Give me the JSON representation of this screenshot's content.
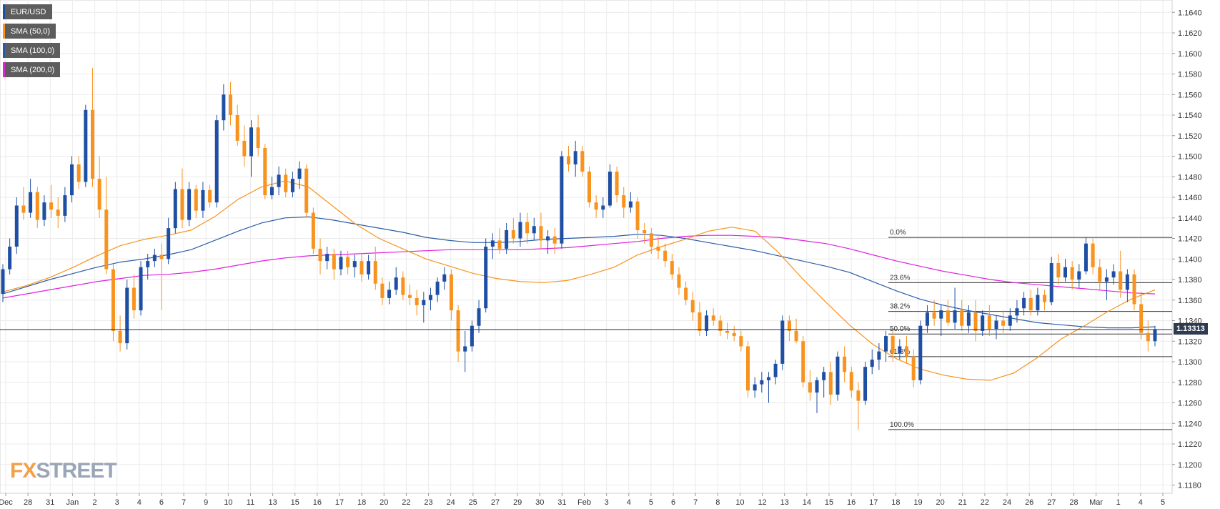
{
  "colors": {
    "up": "#1f4fa3",
    "down": "#f7931e",
    "sma50": "#f7931e",
    "sma100": "#2a5ba8",
    "sma200": "#e020e0",
    "grid": "#ebebeb",
    "axis_text": "#333333",
    "fib_line": "#333333",
    "price_line": "#1b2a4a",
    "legend_bg": "#5d5d5d"
  },
  "legend": [
    {
      "label": "EUR/USD",
      "color": "#1f4fa3"
    },
    {
      "label": "SMA (50,0)",
      "color": "#f7931e"
    },
    {
      "label": "SMA (100,0)",
      "color": "#2a5ba8"
    },
    {
      "label": "SMA (200,0)",
      "color": "#e020e0"
    }
  ],
  "last_price_label": "1.13313",
  "logo": {
    "part1": "FX",
    "part2": "STREET"
  },
  "chart_data": {
    "type": "candlestick",
    "symbol": "EUR/USD",
    "ylim": [
      1.1172,
      1.1652
    ],
    "yticks": [
      "1.1180",
      "1.1200",
      "1.1220",
      "1.1240",
      "1.1260",
      "1.1280",
      "1.1300",
      "1.1320",
      "1.1340",
      "1.1360",
      "1.1380",
      "1.1400",
      "1.1420",
      "1.1440",
      "1.1460",
      "1.1480",
      "1.1500",
      "1.1520",
      "1.1540",
      "1.1560",
      "1.1580",
      "1.1600",
      "1.1620",
      "1.1640"
    ],
    "xticks": [
      "Dec",
      "28",
      "31",
      "Jan",
      "2",
      "3",
      "4",
      "6",
      "7",
      "9",
      "10",
      "11",
      "13",
      "15",
      "16",
      "17",
      "18",
      "20",
      "22",
      "23",
      "24",
      "25",
      "27",
      "29",
      "30",
      "31",
      "Feb",
      "3",
      "4",
      "5",
      "6",
      "7",
      "8",
      "10",
      "12",
      "13",
      "14",
      "15",
      "16",
      "17",
      "18",
      "19",
      "20",
      "21",
      "22",
      "24",
      "26",
      "27",
      "28",
      "Mar",
      "1",
      "4",
      "5"
    ],
    "last_price": 1.13313,
    "fibonacci": [
      {
        "label": "0.0%",
        "value": 1.1421
      },
      {
        "label": "23.6%",
        "value": 1.1377
      },
      {
        "label": "38.2%",
        "value": 1.1349
      },
      {
        "label": "50.0%",
        "value": 1.1327
      },
      {
        "label": "61.8%",
        "value": 1.1305
      },
      {
        "label": "100.0%",
        "value": 1.1234
      }
    ],
    "candles_ohlc": [
      [
        1.1366,
        1.1395,
        1.1358,
        1.139
      ],
      [
        1.139,
        1.142,
        1.1385,
        1.1412
      ],
      [
        1.1412,
        1.146,
        1.1405,
        1.1452
      ],
      [
        1.1452,
        1.147,
        1.1438,
        1.1445
      ],
      [
        1.1445,
        1.1478,
        1.144,
        1.1465
      ],
      [
        1.1465,
        1.147,
        1.143,
        1.1438
      ],
      [
        1.1438,
        1.1462,
        1.1432,
        1.1455
      ],
      [
        1.1455,
        1.1472,
        1.144,
        1.1448
      ],
      [
        1.1448,
        1.146,
        1.143,
        1.1442
      ],
      [
        1.1442,
        1.147,
        1.1436,
        1.1462
      ],
      [
        1.1462,
        1.15,
        1.1455,
        1.1492
      ],
      [
        1.1492,
        1.15,
        1.1468,
        1.1475
      ],
      [
        1.1475,
        1.155,
        1.147,
        1.1545
      ],
      [
        1.1545,
        1.1586,
        1.147,
        1.1478
      ],
      [
        1.1478,
        1.15,
        1.144,
        1.1448
      ],
      [
        1.1448,
        1.148,
        1.1385,
        1.139
      ],
      [
        1.139,
        1.1395,
        1.132,
        1.133
      ],
      [
        1.133,
        1.1345,
        1.131,
        1.1318
      ],
      [
        1.1318,
        1.138,
        1.1312,
        1.1372
      ],
      [
        1.1372,
        1.1385,
        1.1342,
        1.135
      ],
      [
        1.135,
        1.1398,
        1.1345,
        1.1392
      ],
      [
        1.1392,
        1.1405,
        1.138,
        1.1398
      ],
      [
        1.1398,
        1.141,
        1.1392,
        1.1404
      ],
      [
        1.1404,
        1.1415,
        1.135,
        1.14
      ],
      [
        1.14,
        1.144,
        1.1395,
        1.143
      ],
      [
        1.143,
        1.1475,
        1.1425,
        1.1468
      ],
      [
        1.1468,
        1.1488,
        1.143,
        1.1438
      ],
      [
        1.1438,
        1.1475,
        1.1432,
        1.1468
      ],
      [
        1.1468,
        1.1472,
        1.144,
        1.1447
      ],
      [
        1.1447,
        1.1475,
        1.144,
        1.1467
      ],
      [
        1.1467,
        1.1472,
        1.145,
        1.1455
      ],
      [
        1.1455,
        1.154,
        1.145,
        1.1535
      ],
      [
        1.1535,
        1.157,
        1.1525,
        1.156
      ],
      [
        1.156,
        1.1572,
        1.153,
        1.154
      ],
      [
        1.154,
        1.155,
        1.151,
        1.1515
      ],
      [
        1.1515,
        1.153,
        1.149,
        1.15
      ],
      [
        1.15,
        1.1535,
        1.148,
        1.1528
      ],
      [
        1.1528,
        1.154,
        1.15,
        1.1508
      ],
      [
        1.1508,
        1.1512,
        1.1458,
        1.1462
      ],
      [
        1.1462,
        1.148,
        1.1458,
        1.147
      ],
      [
        1.147,
        1.149,
        1.1462,
        1.1482
      ],
      [
        1.1482,
        1.1488,
        1.146,
        1.1465
      ],
      [
        1.1465,
        1.1485,
        1.146,
        1.1478
      ],
      [
        1.1478,
        1.1495,
        1.1468,
        1.1488
      ],
      [
        1.1488,
        1.1492,
        1.144,
        1.1445
      ],
      [
        1.1445,
        1.145,
        1.1405,
        1.141
      ],
      [
        1.141,
        1.142,
        1.1385,
        1.1398
      ],
      [
        1.1398,
        1.1412,
        1.139,
        1.1405
      ],
      [
        1.1405,
        1.141,
        1.138,
        1.139
      ],
      [
        1.139,
        1.1408,
        1.1384,
        1.1402
      ],
      [
        1.1402,
        1.1408,
        1.1385,
        1.1392
      ],
      [
        1.1392,
        1.1404,
        1.1382,
        1.1398
      ],
      [
        1.1398,
        1.1405,
        1.1378,
        1.1385
      ],
      [
        1.1385,
        1.1404,
        1.138,
        1.1398
      ],
      [
        1.1398,
        1.1412,
        1.137,
        1.1376
      ],
      [
        1.1376,
        1.1382,
        1.1355,
        1.1362
      ],
      [
        1.1362,
        1.1378,
        1.1356,
        1.137
      ],
      [
        1.137,
        1.1392,
        1.1365,
        1.1382
      ],
      [
        1.1382,
        1.1388,
        1.136,
        1.1365
      ],
      [
        1.1365,
        1.1375,
        1.1355,
        1.1362
      ],
      [
        1.1362,
        1.137,
        1.1345,
        1.1355
      ],
      [
        1.1355,
        1.1368,
        1.1338,
        1.136
      ],
      [
        1.136,
        1.1372,
        1.135,
        1.1365
      ],
      [
        1.1365,
        1.1382,
        1.1358,
        1.1378
      ],
      [
        1.1378,
        1.1392,
        1.137,
        1.1385
      ],
      [
        1.1385,
        1.139,
        1.134,
        1.135
      ],
      [
        1.135,
        1.1355,
        1.13,
        1.131
      ],
      [
        1.131,
        1.133,
        1.129,
        1.1315
      ],
      [
        1.1315,
        1.134,
        1.131,
        1.1335
      ],
      [
        1.1335,
        1.136,
        1.1328,
        1.1352
      ],
      [
        1.1352,
        1.142,
        1.1348,
        1.1412
      ],
      [
        1.1412,
        1.1425,
        1.14,
        1.1418
      ],
      [
        1.1418,
        1.143,
        1.1405,
        1.141
      ],
      [
        1.141,
        1.1435,
        1.1405,
        1.1428
      ],
      [
        1.1428,
        1.144,
        1.1415,
        1.142
      ],
      [
        1.142,
        1.1445,
        1.1412,
        1.1436
      ],
      [
        1.1436,
        1.1445,
        1.1415,
        1.1425
      ],
      [
        1.1425,
        1.144,
        1.1418,
        1.1432
      ],
      [
        1.1432,
        1.1445,
        1.141,
        1.1418
      ],
      [
        1.1418,
        1.1428,
        1.1405,
        1.1422
      ],
      [
        1.1422,
        1.143,
        1.1405,
        1.1415
      ],
      [
        1.1415,
        1.1505,
        1.141,
        1.15
      ],
      [
        1.15,
        1.151,
        1.1485,
        1.1492
      ],
      [
        1.1492,
        1.1515,
        1.148,
        1.1505
      ],
      [
        1.1505,
        1.151,
        1.148,
        1.1485
      ],
      [
        1.1485,
        1.149,
        1.145,
        1.1455
      ],
      [
        1.1455,
        1.1462,
        1.144,
        1.1448
      ],
      [
        1.1448,
        1.146,
        1.144,
        1.1452
      ],
      [
        1.1452,
        1.1492,
        1.145,
        1.1485
      ],
      [
        1.1485,
        1.149,
        1.1455,
        1.1462
      ],
      [
        1.1462,
        1.147,
        1.144,
        1.145
      ],
      [
        1.145,
        1.1465,
        1.1445,
        1.1456
      ],
      [
        1.1456,
        1.146,
        1.142,
        1.1428
      ],
      [
        1.1428,
        1.1435,
        1.1415,
        1.1425
      ],
      [
        1.1425,
        1.143,
        1.1405,
        1.1412
      ],
      [
        1.1412,
        1.1422,
        1.14,
        1.1408
      ],
      [
        1.1408,
        1.1415,
        1.1392,
        1.1398
      ],
      [
        1.1398,
        1.1405,
        1.138,
        1.1385
      ],
      [
        1.1385,
        1.1392,
        1.1365,
        1.1372
      ],
      [
        1.1372,
        1.1378,
        1.1355,
        1.136
      ],
      [
        1.136,
        1.1368,
        1.134,
        1.1348
      ],
      [
        1.1348,
        1.1358,
        1.1325,
        1.133
      ],
      [
        1.133,
        1.135,
        1.1325,
        1.1345
      ],
      [
        1.1345,
        1.1352,
        1.1335,
        1.134
      ],
      [
        1.134,
        1.1345,
        1.1325,
        1.133
      ],
      [
        1.133,
        1.1338,
        1.1322,
        1.1328
      ],
      [
        1.1328,
        1.1335,
        1.132,
        1.1325
      ],
      [
        1.1325,
        1.133,
        1.131,
        1.1315
      ],
      [
        1.1315,
        1.132,
        1.1265,
        1.1272
      ],
      [
        1.1272,
        1.1285,
        1.1265,
        1.1278
      ],
      [
        1.1278,
        1.129,
        1.127,
        1.1282
      ],
      [
        1.1282,
        1.129,
        1.126,
        1.1285
      ],
      [
        1.1285,
        1.1302,
        1.1278,
        1.1298
      ],
      [
        1.1298,
        1.1345,
        1.1292,
        1.134
      ],
      [
        1.134,
        1.1345,
        1.132,
        1.133
      ],
      [
        1.133,
        1.1342,
        1.1318,
        1.132
      ],
      [
        1.132,
        1.1325,
        1.1275,
        1.128
      ],
      [
        1.128,
        1.1292,
        1.1262,
        1.127
      ],
      [
        1.127,
        1.1285,
        1.125,
        1.1282
      ],
      [
        1.1282,
        1.1295,
        1.1265,
        1.129
      ],
      [
        1.129,
        1.13,
        1.1258,
        1.1268
      ],
      [
        1.1268,
        1.131,
        1.1262,
        1.1305
      ],
      [
        1.1305,
        1.1315,
        1.128,
        1.129
      ],
      [
        1.129,
        1.1295,
        1.1265,
        1.1272
      ],
      [
        1.1272,
        1.128,
        1.1234,
        1.1262
      ],
      [
        1.1262,
        1.13,
        1.1258,
        1.1295
      ],
      [
        1.1295,
        1.1312,
        1.1288,
        1.1302
      ],
      [
        1.1302,
        1.1318,
        1.1292,
        1.131
      ],
      [
        1.131,
        1.133,
        1.13,
        1.1325
      ],
      [
        1.1325,
        1.133,
        1.13,
        1.1308
      ],
      [
        1.1308,
        1.1322,
        1.1302,
        1.1315
      ],
      [
        1.1315,
        1.1325,
        1.1298,
        1.1305
      ],
      [
        1.1305,
        1.1312,
        1.1275,
        1.1282
      ],
      [
        1.1282,
        1.134,
        1.1278,
        1.1335
      ],
      [
        1.1335,
        1.1355,
        1.1328,
        1.1348
      ],
      [
        1.1348,
        1.136,
        1.1335,
        1.1342
      ],
      [
        1.1342,
        1.1356,
        1.1325,
        1.135
      ],
      [
        1.135,
        1.136,
        1.1335,
        1.1338
      ],
      [
        1.1338,
        1.1372,
        1.1332,
        1.135
      ],
      [
        1.135,
        1.136,
        1.133,
        1.1335
      ],
      [
        1.1335,
        1.1355,
        1.1328,
        1.1348
      ],
      [
        1.1348,
        1.136,
        1.132,
        1.133
      ],
      [
        1.133,
        1.135,
        1.1325,
        1.1345
      ],
      [
        1.1345,
        1.1355,
        1.1325,
        1.1332
      ],
      [
        1.1332,
        1.1345,
        1.1322,
        1.134
      ],
      [
        1.134,
        1.135,
        1.1328,
        1.1335
      ],
      [
        1.1335,
        1.1352,
        1.133,
        1.1345
      ],
      [
        1.1345,
        1.136,
        1.1338,
        1.1352
      ],
      [
        1.1352,
        1.1368,
        1.1345,
        1.1362
      ],
      [
        1.1362,
        1.137,
        1.1345,
        1.135
      ],
      [
        1.135,
        1.1372,
        1.1345,
        1.1365
      ],
      [
        1.1365,
        1.137,
        1.135,
        1.1358
      ],
      [
        1.1358,
        1.1402,
        1.1355,
        1.1396
      ],
      [
        1.1396,
        1.1405,
        1.1375,
        1.1382
      ],
      [
        1.1382,
        1.14,
        1.1378,
        1.1392
      ],
      [
        1.1392,
        1.1398,
        1.137,
        1.138
      ],
      [
        1.138,
        1.1395,
        1.1372,
        1.1388
      ],
      [
        1.1388,
        1.1421,
        1.1385,
        1.1415
      ],
      [
        1.1415,
        1.142,
        1.1385,
        1.1392
      ],
      [
        1.1392,
        1.14,
        1.137,
        1.1378
      ],
      [
        1.1378,
        1.139,
        1.136,
        1.1382
      ],
      [
        1.1382,
        1.1395,
        1.1375,
        1.1388
      ],
      [
        1.1388,
        1.1408,
        1.1362,
        1.137
      ],
      [
        1.137,
        1.139,
        1.1358,
        1.1385
      ],
      [
        1.1385,
        1.139,
        1.135,
        1.1356
      ],
      [
        1.1356,
        1.1368,
        1.1322,
        1.1328
      ],
      [
        1.1328,
        1.134,
        1.131,
        1.132
      ],
      [
        1.132,
        1.1335,
        1.1315,
        1.1331
      ]
    ],
    "sma50": [
      1.1368,
      1.1374,
      1.1382,
      1.1392,
      1.1403,
      1.1413,
      1.1419,
      1.1423,
      1.1428,
      1.1441,
      1.1458,
      1.147,
      1.1476,
      1.147,
      1.1452,
      1.1434,
      1.142,
      1.141,
      1.14,
      1.1393,
      1.1386,
      1.1381,
      1.1378,
      1.1377,
      1.1379,
      1.1385,
      1.1392,
      1.1404,
      1.1412,
      1.1419,
      1.1427,
      1.1431,
      1.1427,
      1.1406,
      1.1381,
      1.1358,
      1.1336,
      1.1317,
      1.1303,
      1.1293,
      1.1287,
      1.1283,
      1.1282,
      1.1289,
      1.1304,
      1.1322,
      1.1335,
      1.1349,
      1.1361,
      1.137
    ],
    "sma100": [
      1.1366,
      1.1373,
      1.138,
      1.1386,
      1.1392,
      1.1397,
      1.14,
      1.1404,
      1.1409,
      1.1418,
      1.1427,
      1.1435,
      1.144,
      1.1441,
      1.1438,
      1.1434,
      1.143,
      1.1426,
      1.1421,
      1.1418,
      1.1416,
      1.1416,
      1.1417,
      1.1419,
      1.142,
      1.1421,
      1.1422,
      1.1424,
      1.1423,
      1.142,
      1.1416,
      1.1412,
      1.1408,
      1.1403,
      1.1398,
      1.1393,
      1.1387,
      1.1378,
      1.1369,
      1.1361,
      1.1355,
      1.135,
      1.1346,
      1.1342,
      1.1338,
      1.1336,
      1.1334,
      1.1333,
      1.1333,
      1.1334
    ],
    "sma200": [
      1.1362,
      1.1366,
      1.137,
      1.1374,
      1.1378,
      1.1381,
      1.1384,
      1.1385,
      1.1387,
      1.139,
      1.1394,
      1.1398,
      1.1401,
      1.1403,
      1.1404,
      1.1405,
      1.1406,
      1.1407,
      1.1408,
      1.1409,
      1.1409,
      1.1409,
      1.1409,
      1.141,
      1.1411,
      1.1413,
      1.1415,
      1.1417,
      1.142,
      1.1422,
      1.1423,
      1.1423,
      1.1422,
      1.1421,
      1.1418,
      1.1415,
      1.141,
      1.1404,
      1.1398,
      1.1393,
      1.1388,
      1.1384,
      1.138,
      1.1377,
      1.1375,
      1.1373,
      1.1371,
      1.1369,
      1.1367,
      1.1366
    ]
  }
}
